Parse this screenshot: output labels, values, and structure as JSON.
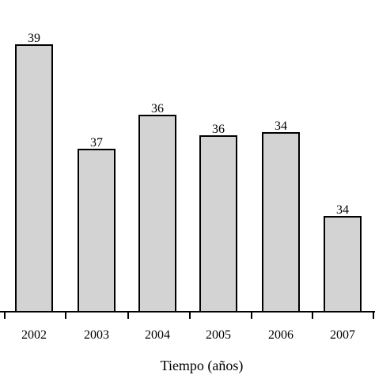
{
  "chart_data": {
    "type": "bar",
    "categories": [
      "2002",
      "2003",
      "2004",
      "2005",
      "2006",
      "2007"
    ],
    "values": [
      39,
      37,
      36,
      36,
      34,
      34
    ],
    "data_labels": [
      "39",
      "37",
      "36",
      "36",
      "34",
      "34"
    ],
    "xlabel": "Tiempo (años)",
    "ylabel": "",
    "title": "",
    "grid": false,
    "legend": "none",
    "bar_color": "#d3d3d3",
    "edge_color": "#000000"
  }
}
